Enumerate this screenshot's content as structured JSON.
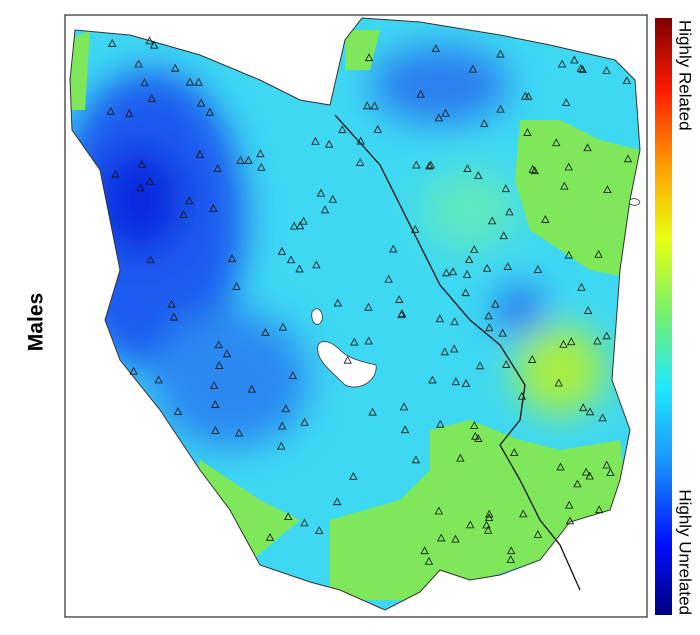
{
  "title": "Males",
  "legend": {
    "high": "Highly Related",
    "low": "Highly Unrelated"
  }
}
